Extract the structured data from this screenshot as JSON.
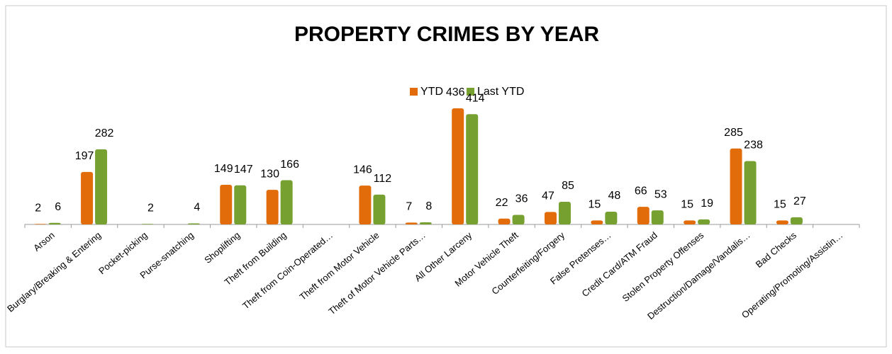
{
  "chart_data": {
    "type": "bar",
    "title": "PROPERTY CRIMES BY YEAR",
    "categories": [
      "Arson",
      "Burglary/Breaking & Entering",
      "Pocket-picking",
      "Purse-snatching",
      "Shoplifting",
      "Theft from Building",
      "Theft from Coin-Operated…",
      "Theft from Motor Vehicle",
      "Theft of Motor Vehicle Parts…",
      "All Other Larceny",
      "Motor Vehicle Theft",
      "Counterfeiting/Forgery",
      "False Pretenses…",
      "Credit Card/ATM Fraud",
      "Stolen Property Offenses",
      "Destruction/Damage/Vandalis…",
      "Bad Checks",
      "Operating/Promoting/Assistin…"
    ],
    "series": [
      {
        "name": "YTD",
        "color": "#e36c0a",
        "values": [
          2,
          197,
          null,
          null,
          149,
          130,
          null,
          146,
          7,
          436,
          22,
          47,
          15,
          66,
          15,
          285,
          15,
          null
        ]
      },
      {
        "name": "Last YTD",
        "color": "#76a130",
        "values": [
          6,
          282,
          2,
          4,
          147,
          166,
          null,
          112,
          8,
          414,
          36,
          85,
          48,
          53,
          19,
          238,
          27,
          null
        ]
      }
    ],
    "legend": "top"
  }
}
